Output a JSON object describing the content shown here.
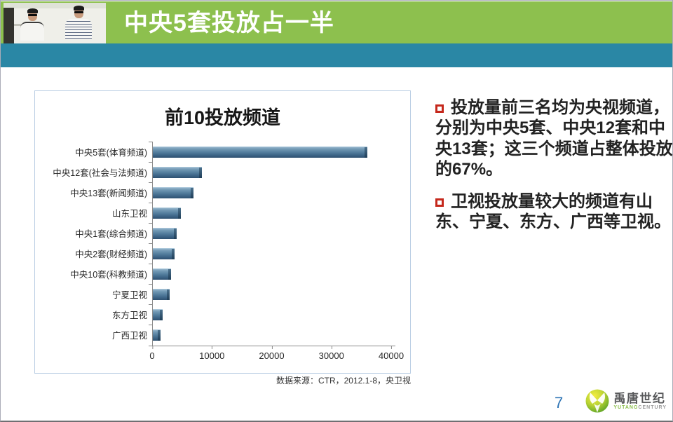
{
  "header": {
    "title": "中央5套投放占一半"
  },
  "chart": {
    "title": "前10投放频道",
    "source_note": "数据来源：CTR，2012.1-8，央卫视"
  },
  "chart_data": {
    "type": "bar",
    "orientation": "horizontal",
    "title": "前10投放频道",
    "categories": [
      "中央5套(体育频道)",
      "中央12套(社会与法频道)",
      "中央13套(新闻频道)",
      "山东卫视",
      "中央1套(综合频道)",
      "中央2套(财经频道)",
      "中央10套(科教频道)",
      "宁夏卫视",
      "东方卫视",
      "广西卫视"
    ],
    "values": [
      36000,
      8300,
      6900,
      4800,
      4100,
      3800,
      3200,
      2900,
      1800,
      1400
    ],
    "xlabel": "",
    "ylabel": "",
    "xlim": [
      0,
      40000
    ],
    "x_ticks": [
      0,
      10000,
      20000,
      30000,
      40000
    ],
    "grid": false,
    "legend": false,
    "bar_color": "#53799a",
    "source": "数据来源：CTR，2012.1-8，央卫视"
  },
  "bullets": [
    {
      "text": "投放量前三名均为央视频道，分别为中央5套、中央12套和中央13套；这三个频道占整体投放的67%。"
    },
    {
      "text": "卫视投放量较大的频道有山东、宁夏、东方、广西等卫视。"
    }
  ],
  "footer": {
    "page_number": "7",
    "logo_cn": "禹唐世纪",
    "logo_en_top": "YUTANG",
    "logo_en_bottom": "CENTURY"
  },
  "colors": {
    "header_green": "#8dc04e",
    "band_teal": "#2a87a5",
    "bar_blue": "#53799a",
    "bullet_red": "#c5281c",
    "page_number_blue": "#2e74b5"
  }
}
